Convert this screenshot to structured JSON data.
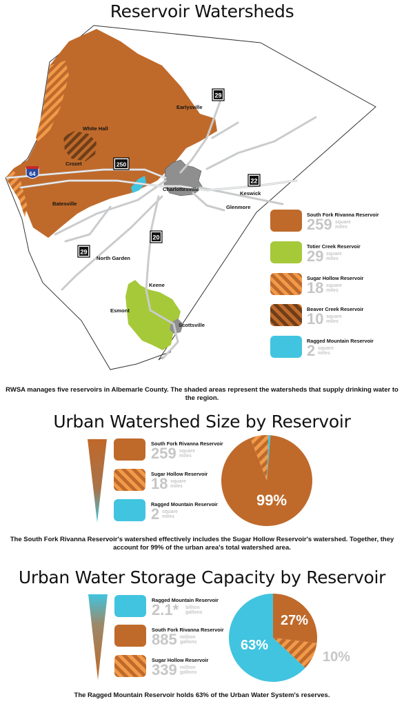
{
  "map_section": {
    "title": "Reservoir Watersheds",
    "places": [
      "Earlysville",
      "White Hall",
      "Crozet",
      "Charlottesville",
      "Keswick",
      "Glenmore",
      "Batesville",
      "North Garden",
      "Keene",
      "Esmont",
      "Scottsville"
    ],
    "highways": [
      "29",
      "250",
      "64",
      "22",
      "20",
      "29"
    ],
    "legend": [
      {
        "name": "South Fork Rivanna Reservoir",
        "value": "259",
        "unit": "square miles",
        "pattern": "solid",
        "color": "#bf6a2b"
      },
      {
        "name": "Totier Creek Reservoir",
        "value": "29",
        "unit": "square miles",
        "pattern": "solid",
        "color": "#a6c93a"
      },
      {
        "name": "Sugar Hollow Reservoir",
        "value": "18",
        "unit": "square miles",
        "pattern": "stripes-light",
        "color": "#bf6a2b"
      },
      {
        "name": "Beaver Creek Reservoir",
        "value": "10",
        "unit": "square miles",
        "pattern": "stripes-dark",
        "color": "#8a5125"
      },
      {
        "name": "Ragged Mountain Reservoir",
        "value": "2",
        "unit": "square miles",
        "pattern": "solid",
        "color": "#41c4df"
      }
    ],
    "caption": "RWSA manages five reservoirs in Albemarle County. The shaded areas represent the watersheds that supply drinking water to the region."
  },
  "size_section": {
    "title": "Urban Watershed Size by Reservoir",
    "legend": [
      {
        "name": "South Fork Rivanna Reservoir",
        "value": "259",
        "unit": "square miles",
        "pattern": "solid"
      },
      {
        "name": "Sugar Hollow Reservoir",
        "value": "18",
        "unit": "square miles",
        "pattern": "stripes-light"
      },
      {
        "name": "Ragged Mountain Reservoir",
        "value": "2",
        "unit": "square miles",
        "pattern": "solid-blue"
      }
    ],
    "pie_label": "99%",
    "caption": "The South Fork Rivanna Reservoir's watershed effectively includes the Sugar Hollow Reservoir's watershed. Together, they account for 99% of the urban area's total watershed area."
  },
  "storage_section": {
    "title": "Urban Water Storage Capacity by Reservoir",
    "legend": [
      {
        "name": "Ragged Mountain Reservoir",
        "value": "2.1*",
        "unit": "billion gallons",
        "pattern": "solid-blue"
      },
      {
        "name": "South Fork Rivanna Reservoir",
        "value": "885",
        "unit": "million gallons",
        "pattern": "solid"
      },
      {
        "name": "Sugar Hollow Reservoir",
        "value": "339",
        "unit": "million gallons",
        "pattern": "stripes-light"
      }
    ],
    "pie_labels": [
      "27%",
      "63%",
      "10%"
    ],
    "caption": "The Ragged Mountain Reservoir holds 63% of the Urban Water System's reserves."
  },
  "chart_data": [
    {
      "type": "pie",
      "categories": [
        "South Fork Rivanna Reservoir",
        "Sugar Hollow Reservoir",
        "Ragged Mountain Reservoir"
      ],
      "values": [
        259,
        18,
        2
      ],
      "unit": "square miles",
      "label": "99%"
    },
    {
      "type": "pie",
      "categories": [
        "Ragged Mountain Reservoir",
        "South Fork Rivanna Reservoir",
        "Sugar Hollow Reservoir"
      ],
      "values": [
        63,
        27,
        10
      ],
      "unit": "%",
      "colors": [
        "#41c4df",
        "#bf6a2b",
        "#bf6a2b"
      ]
    }
  ]
}
